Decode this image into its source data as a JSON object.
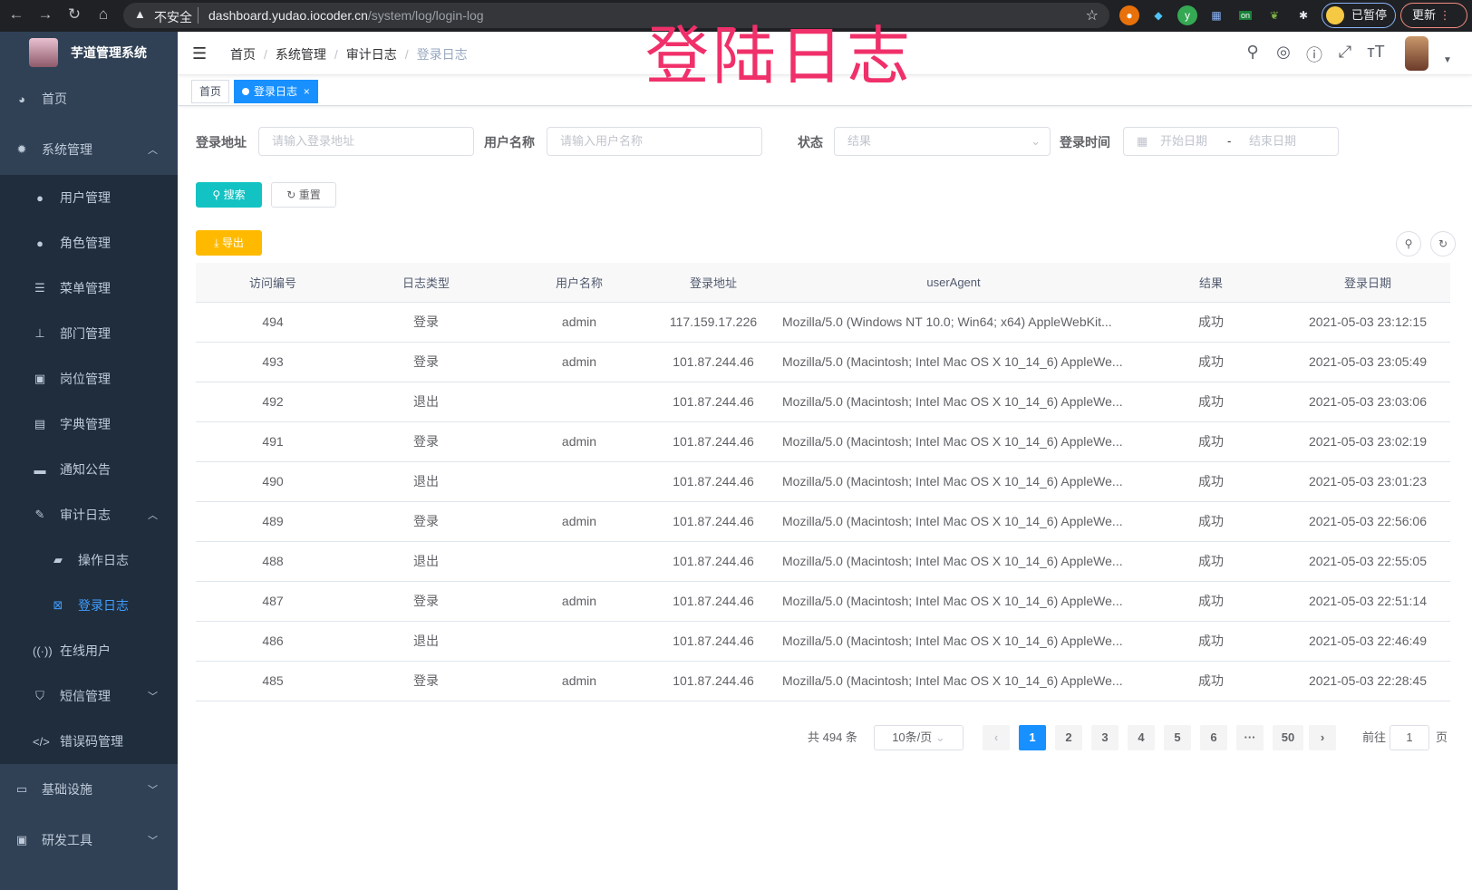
{
  "browser": {
    "insecure": "不安全",
    "host": "dashboard.yudao.iocoder.cn",
    "path": "/system/log/login-log",
    "paused": "已暂停",
    "update": "更新",
    "ext_on": "on"
  },
  "sidebar": {
    "title": "芋道管理系统",
    "items": [
      {
        "label": "首页",
        "icon": "dashboard-icon"
      },
      {
        "label": "系统管理",
        "icon": "gear-icon",
        "children": [
          {
            "label": "用户管理",
            "icon": "user-icon"
          },
          {
            "label": "角色管理",
            "icon": "peoples-icon"
          },
          {
            "label": "菜单管理",
            "icon": "tree-table-icon"
          },
          {
            "label": "部门管理",
            "icon": "tree-icon"
          },
          {
            "label": "岗位管理",
            "icon": "post-icon"
          },
          {
            "label": "字典管理",
            "icon": "dict-icon"
          },
          {
            "label": "通知公告",
            "icon": "message-icon"
          },
          {
            "label": "审计日志",
            "icon": "log-icon",
            "children": [
              {
                "label": "操作日志",
                "icon": "form-icon"
              },
              {
                "label": "登录日志",
                "icon": "logininfor-icon",
                "active": true
              }
            ]
          },
          {
            "label": "在线用户",
            "icon": "online-icon"
          },
          {
            "label": "短信管理",
            "icon": "shield-icon"
          },
          {
            "label": "错误码管理",
            "icon": "code-icon"
          }
        ]
      },
      {
        "label": "基础设施",
        "icon": "monitor-icon"
      },
      {
        "label": "研发工具",
        "icon": "tool-icon"
      }
    ]
  },
  "navbar": {
    "breadcrumb": [
      "首页",
      "系统管理",
      "审计日志",
      "登录日志"
    ]
  },
  "overlay_title": "登陆日志",
  "tags": {
    "home": "首页",
    "current": "登录日志",
    "close": "×"
  },
  "filters": {
    "address": {
      "label": "登录地址",
      "placeholder": "请输入登录地址"
    },
    "username": {
      "label": "用户名称",
      "placeholder": "请输入用户名称"
    },
    "status": {
      "label": "状态",
      "placeholder": "结果"
    },
    "time": {
      "label": "登录时间",
      "start": "开始日期",
      "sep": "-",
      "end": "结束日期"
    },
    "search": "搜索",
    "reset": "重置",
    "export": "导出"
  },
  "table": {
    "columns": [
      "访问编号",
      "日志类型",
      "用户名称",
      "登录地址",
      "userAgent",
      "结果",
      "登录日期"
    ],
    "rows": [
      [
        "494",
        "登录",
        "admin",
        "117.159.17.226",
        "Mozilla/5.0 (Windows NT 10.0; Win64; x64) AppleWebKit...",
        "成功",
        "2021-05-03 23:12:15"
      ],
      [
        "493",
        "登录",
        "admin",
        "101.87.244.46",
        "Mozilla/5.0 (Macintosh; Intel Mac OS X 10_14_6) AppleWe...",
        "成功",
        "2021-05-03 23:05:49"
      ],
      [
        "492",
        "退出",
        "",
        "101.87.244.46",
        "Mozilla/5.0 (Macintosh; Intel Mac OS X 10_14_6) AppleWe...",
        "成功",
        "2021-05-03 23:03:06"
      ],
      [
        "491",
        "登录",
        "admin",
        "101.87.244.46",
        "Mozilla/5.0 (Macintosh; Intel Mac OS X 10_14_6) AppleWe...",
        "成功",
        "2021-05-03 23:02:19"
      ],
      [
        "490",
        "退出",
        "",
        "101.87.244.46",
        "Mozilla/5.0 (Macintosh; Intel Mac OS X 10_14_6) AppleWe...",
        "成功",
        "2021-05-03 23:01:23"
      ],
      [
        "489",
        "登录",
        "admin",
        "101.87.244.46",
        "Mozilla/5.0 (Macintosh; Intel Mac OS X 10_14_6) AppleWe...",
        "成功",
        "2021-05-03 22:56:06"
      ],
      [
        "488",
        "退出",
        "",
        "101.87.244.46",
        "Mozilla/5.0 (Macintosh; Intel Mac OS X 10_14_6) AppleWe...",
        "成功",
        "2021-05-03 22:55:05"
      ],
      [
        "487",
        "登录",
        "admin",
        "101.87.244.46",
        "Mozilla/5.0 (Macintosh; Intel Mac OS X 10_14_6) AppleWe...",
        "成功",
        "2021-05-03 22:51:14"
      ],
      [
        "486",
        "退出",
        "",
        "101.87.244.46",
        "Mozilla/5.0 (Macintosh; Intel Mac OS X 10_14_6) AppleWe...",
        "成功",
        "2021-05-03 22:46:49"
      ],
      [
        "485",
        "登录",
        "admin",
        "101.87.244.46",
        "Mozilla/5.0 (Macintosh; Intel Mac OS X 10_14_6) AppleWe...",
        "成功",
        "2021-05-03 22:28:45"
      ]
    ]
  },
  "pagination": {
    "total": "共 494 条",
    "page_size": "10条/页",
    "pages": [
      "1",
      "2",
      "3",
      "4",
      "5",
      "6",
      "···",
      "50"
    ],
    "current": "1",
    "goto_label": "前往",
    "goto_value": "1",
    "goto_unit": "页"
  },
  "colors": {
    "sidebar": "#304156",
    "submenu": "#1f2d3d",
    "primary": "#1890ff",
    "search": "#13c2c2",
    "export": "#ffba00",
    "overlay": "#f0306a"
  }
}
